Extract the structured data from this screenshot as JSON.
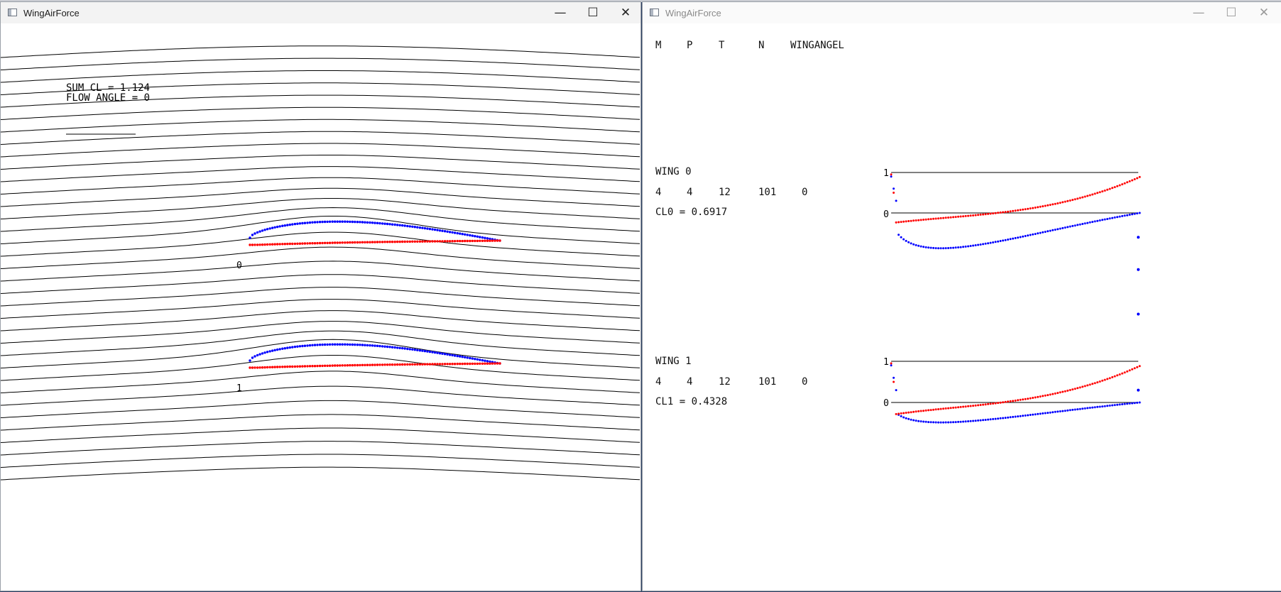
{
  "windows": {
    "flow": {
      "title": "WingAirForce",
      "sum_cl_label": "SUM CL     = 1.124",
      "flow_angle_label": "FLOW ANGLE = 0",
      "wing_labels": [
        "0",
        "1"
      ]
    },
    "data": {
      "title": "WingAirForce",
      "header": [
        "M",
        "P",
        "T",
        "N",
        "WINGANGEL"
      ],
      "wings": [
        {
          "name": "WING 0",
          "values": [
            "4",
            "4",
            "12",
            "101",
            "0"
          ],
          "cl": "CL0 = 0.6917",
          "axis_top": "1",
          "axis_zero": "0"
        },
        {
          "name": "WING 1",
          "values": [
            "4",
            "4",
            "12",
            "101",
            "0"
          ],
          "cl": "CL1 = 0.4328",
          "axis_top": "1",
          "axis_zero": "0"
        }
      ]
    }
  },
  "window_controls": {
    "minimize": "—",
    "maximize": "☐",
    "close": "✕"
  },
  "colors": {
    "upper_surface": "#0000ff",
    "lower_surface": "#ff0000",
    "streamline": "#000000"
  },
  "chart_data": [
    {
      "type": "scatter",
      "title": "",
      "series_colors": [
        "#0000ff",
        "#ff0000"
      ],
      "ylim": [
        -1,
        1
      ],
      "yticks": [
        "1",
        "0"
      ],
      "note_values": "pressure distributions drawn as dotted curves"
    },
    {
      "type": "scatter",
      "title": "",
      "series_colors": [
        "#0000ff",
        "#ff0000"
      ],
      "ylim": [
        -1,
        1
      ],
      "yticks": [
        "1",
        "0"
      ]
    }
  ]
}
